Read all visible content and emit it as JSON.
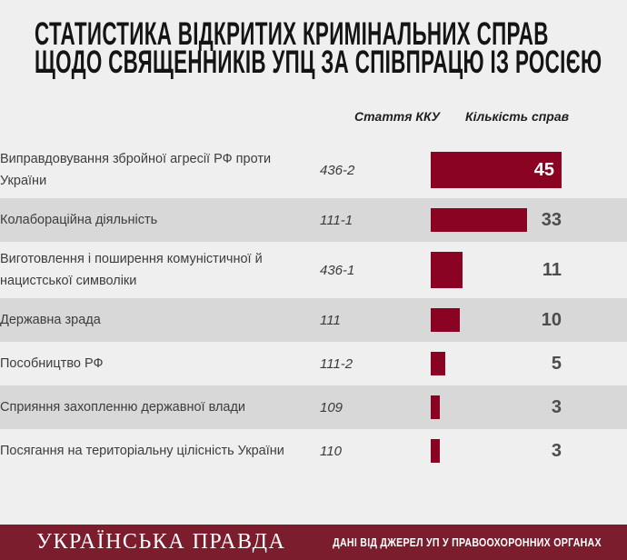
{
  "title": {
    "line1": "СТАТИСТИКА ВІДКРИТИХ КРИМІНАЛЬНИХ СПРАВ",
    "line2": "ЩОДО СВЯЩЕННИКІВ УПЦ ЗА СПІВПРАЦЮ ІЗ РОСІЄЮ"
  },
  "table": {
    "col_article_header": "Стаття ККУ",
    "col_count_header": "Кількість справ",
    "rows": [
      {
        "label": "Виправдовування збройної агресії РФ проти України",
        "article": "436-2",
        "count": 45
      },
      {
        "label": "Колабораційна діяльність",
        "article": "111-1",
        "count": 33
      },
      {
        "label": "Виготовлення і поширення комуністичної й нацистської символіки",
        "article": "436-1",
        "count": 11
      },
      {
        "label": "Державна зрада",
        "article": "111",
        "count": 10
      },
      {
        "label": "Пособництво РФ",
        "article": "111-2",
        "count": 5
      },
      {
        "label": "Сприяння захопленню державної влади",
        "article": "109",
        "count": 3
      },
      {
        "label": "Посягання на територіальну цілісність України",
        "article": "110",
        "count": 3
      }
    ]
  },
  "footer": {
    "logo": "УКРАЇНСЬКА ПРАВДА",
    "source": "ДАНІ ВІД ДЖЕРЕЛ УП У ПРАВООХОРОННИХ ОРГАНАХ"
  },
  "colors": {
    "page_bg": "#efeff0",
    "alt_row_bg": "#d8d8d8",
    "bar": "#8b0322",
    "footer_bg": "#7c1d2e",
    "count_inside": "#ffffff",
    "count_outside": "#4c4c4c"
  },
  "chart_data": {
    "type": "bar",
    "orientation": "horizontal",
    "title": "Статистика відкритих кримінальних справ щодо священників УПЦ за співпрацю із Росією",
    "categories": [
      "Виправдовування збройної агресії РФ проти України",
      "Колабораційна діяльність",
      "Виготовлення і поширення комуністичної й нацистської символіки",
      "Державна зрада",
      "Пособництво РФ",
      "Сприяння захопленню державної влади",
      "Посягання на територіальну цілісність України"
    ],
    "article_codes": [
      "436-2",
      "111-1",
      "436-1",
      "111",
      "111-2",
      "109",
      "110"
    ],
    "values": [
      45,
      33,
      11,
      10,
      5,
      3,
      3
    ],
    "xlabel": "Кількість справ",
    "column_headers": [
      "Стаття ККУ",
      "Кількість справ"
    ],
    "xlim": [
      0,
      45
    ],
    "grid": false,
    "legend": false,
    "source_note": "Дані від джерел УП у правоохоронних органах"
  }
}
